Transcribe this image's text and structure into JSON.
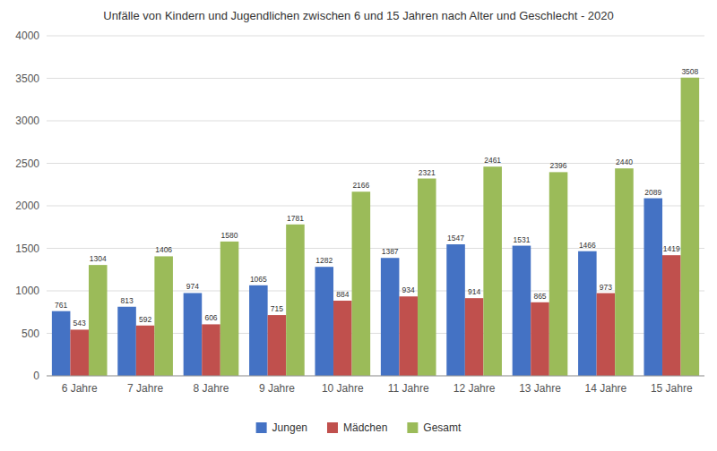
{
  "chart_data": {
    "type": "bar",
    "title": "Unfälle von Kindern und Jugendlichen zwischen 6 und 15 Jahren nach Alter und Geschlecht - 2020",
    "categories": [
      "6 Jahre",
      "7 Jahre",
      "8 Jahre",
      "9 Jahre",
      "10 Jahre",
      "11 Jahre",
      "12 Jahre",
      "13 Jahre",
      "14 Jahre",
      "15 Jahre"
    ],
    "series": [
      {
        "name": "Jungen",
        "color": "#4472C4",
        "values": [
          761,
          813,
          974,
          1065,
          1282,
          1387,
          1547,
          1531,
          1466,
          2089
        ]
      },
      {
        "name": "Mädchen",
        "color": "#C0504D",
        "values": [
          543,
          592,
          606,
          715,
          884,
          934,
          914,
          865,
          973,
          1419
        ]
      },
      {
        "name": "Gesamt",
        "color": "#9BBB59",
        "values": [
          1304,
          1406,
          1580,
          1781,
          2166,
          2321,
          2461,
          2396,
          2440,
          3508
        ]
      }
    ],
    "ylim": [
      0,
      4000
    ],
    "yticks": [
      0,
      500,
      1000,
      1500,
      2000,
      2500,
      3000,
      3500,
      4000
    ],
    "grid": true,
    "legend": "bottom",
    "data_labels": true
  }
}
